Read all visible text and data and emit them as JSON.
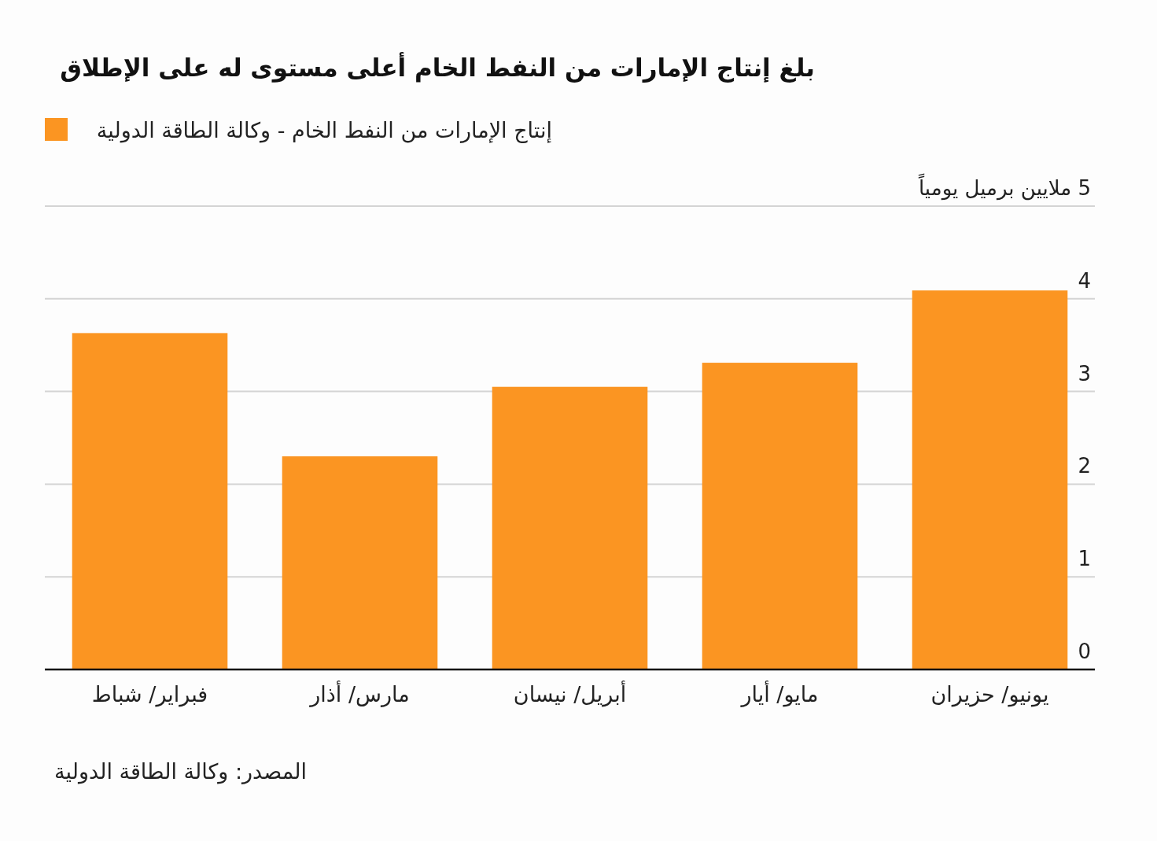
{
  "chart_data": {
    "type": "bar",
    "title": "بلغ إنتاج الإمارات من النفط الخام أعلى مستوى له على الإطلاق",
    "categories": [
      "فبراير/ شباط",
      "مارس/ أذار",
      "أبريل/ نيسان",
      "مايو/ أيار",
      "يونيو/ حزيران"
    ],
    "series": [
      {
        "name": "إنتاج الإمارات من النفط الخام - وكالة الطاقة الدولية",
        "color": "#fb9522",
        "values": [
          3.63,
          2.3,
          3.05,
          3.31,
          4.09
        ]
      }
    ],
    "ylim": [
      0,
      5
    ],
    "yticks": [
      0,
      1,
      2,
      3,
      4,
      {
        "value": 5,
        "label": "5 ملايين برميل يومياً"
      }
    ],
    "grid": "y",
    "legend": "top left",
    "annotations": [
      "المصدر: وكالة الطاقة الدولية"
    ]
  }
}
